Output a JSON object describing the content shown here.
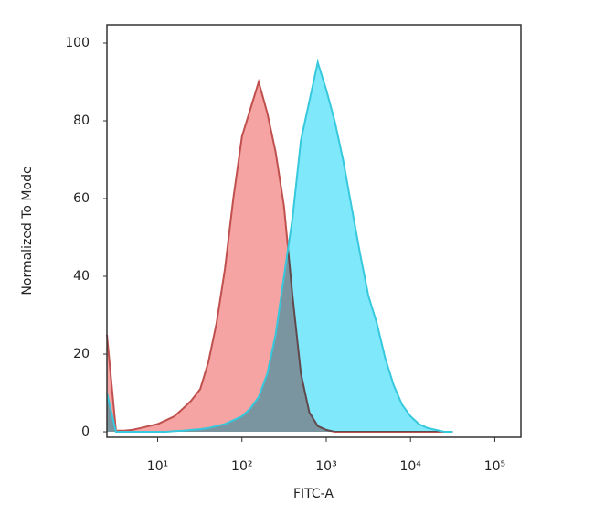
{
  "chart_data": {
    "type": "area",
    "xlabel": "FITC-A",
    "ylabel": "Normalized To Mode",
    "x": [
      2.5,
      3.2,
      4,
      5,
      6.3,
      7.9,
      10,
      12.6,
      15.8,
      20,
      25,
      32,
      40,
      50,
      63,
      79,
      100,
      126,
      158,
      200,
      251,
      316,
      398,
      501,
      631,
      794,
      1000,
      1259,
      1585,
      1995,
      2512,
      3162,
      3981,
      5012,
      6310,
      7943,
      10000,
      12589,
      15849,
      19953,
      25119,
      31623
    ],
    "series": [
      {
        "color": "#c0504d",
        "fill": "#f5a3a3",
        "values": [
          25,
          0.3,
          0.3,
          0.5,
          1,
          1.5,
          2,
          3,
          4,
          6,
          8,
          11,
          18,
          28,
          42,
          60,
          76,
          83,
          90,
          82,
          72,
          58,
          35,
          15,
          5,
          1.5,
          0.5,
          0,
          0,
          0,
          0,
          0,
          0,
          0,
          0,
          0,
          0,
          0,
          0,
          0,
          0,
          0
        ]
      },
      {
        "color": "#36c8dc",
        "fill": "#7fe8fb",
        "values": [
          10,
          0,
          0,
          0,
          0,
          0,
          0,
          0,
          0.2,
          0.3,
          0.5,
          0.7,
          1,
          1.5,
          2,
          3,
          4,
          6,
          9,
          15,
          25,
          40,
          55,
          75,
          85,
          95,
          88,
          80,
          70,
          58,
          46,
          35,
          28,
          19,
          12,
          7,
          4,
          2,
          1,
          0.5,
          0,
          0
        ]
      }
    ],
    "xscale": "log",
    "xlim": [
      2.5,
      204000
    ],
    "xticks": [
      {
        "value": 10,
        "label": "10¹"
      },
      {
        "value": 100,
        "label": "10²"
      },
      {
        "value": 1000,
        "label": "10³"
      },
      {
        "value": 10000,
        "label": "10⁴"
      },
      {
        "value": 100000,
        "label": "10⁵"
      }
    ],
    "ylim": [
      -1.4,
      104.7
    ],
    "yticks": [
      0,
      20,
      40,
      60,
      80,
      100
    ]
  }
}
